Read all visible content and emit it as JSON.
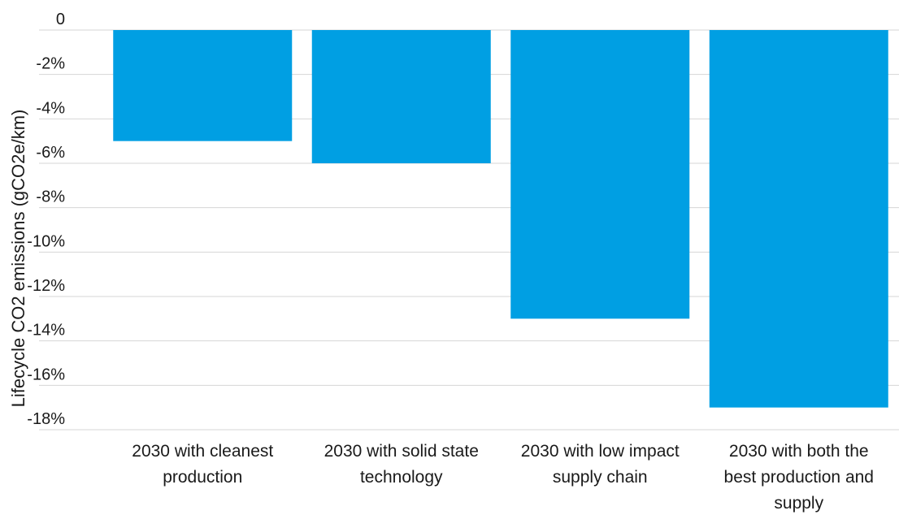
{
  "chart_data": {
    "type": "bar",
    "title": "",
    "xlabel": "",
    "ylabel": "Lifecycle CO2 emissions (gCO2e/km)",
    "categories": [
      "2030 with cleanest production",
      "2030 with solid state technology",
      "2030 with low impact supply chain",
      "2030 with both the best production and supply"
    ],
    "category_lines": [
      [
        "2030 with cleanest",
        "production"
      ],
      [
        "2030 with solid state",
        "technology"
      ],
      [
        "2030 with low impact",
        "supply chain"
      ],
      [
        "2030 with both the",
        "best production and",
        "supply"
      ]
    ],
    "values": [
      -5,
      -6,
      -13,
      -17
    ],
    "ylim": [
      -18,
      0
    ],
    "yticks": [
      0,
      -2,
      -4,
      -6,
      -8,
      -10,
      -12,
      -14,
      -16,
      -18
    ],
    "ytick_labels": [
      "0",
      "-2%",
      "-4%",
      "-6%",
      "-8%",
      "-10%",
      "-12%",
      "-14%",
      "-16%",
      "-18%"
    ],
    "grid": true,
    "bar_color": "#009fe3",
    "legend": "none"
  }
}
